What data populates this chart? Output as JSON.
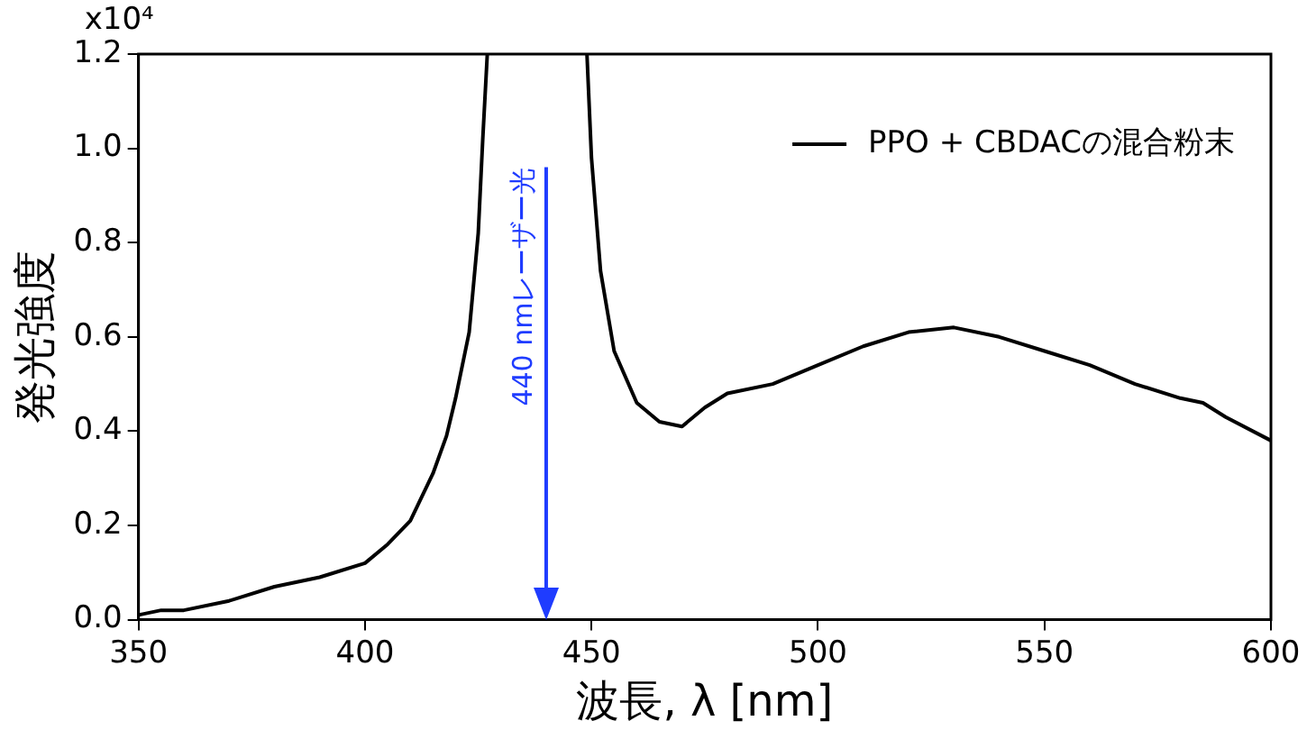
{
  "chart_data": {
    "type": "line",
    "xlabel": "波長, λ [nm]",
    "ylabel": "発光強度",
    "x": [
      350,
      355,
      360,
      370,
      380,
      390,
      400,
      405,
      410,
      415,
      418,
      420,
      423,
      425,
      426,
      427,
      440,
      449,
      450,
      452,
      455,
      460,
      465,
      470,
      475,
      480,
      490,
      500,
      510,
      520,
      530,
      540,
      550,
      560,
      570,
      580,
      585,
      590,
      600
    ],
    "series": [
      {
        "name": "PPO + CBDACの混合粉末",
        "color": "#000000",
        "values": [
          0.01,
          0.02,
          0.02,
          0.04,
          0.07,
          0.09,
          0.12,
          0.16,
          0.21,
          0.31,
          0.39,
          0.47,
          0.61,
          0.82,
          1.02,
          1.2,
          null,
          1.2,
          0.98,
          0.74,
          0.57,
          0.46,
          0.42,
          0.41,
          0.45,
          0.48,
          0.5,
          0.54,
          0.58,
          0.61,
          0.62,
          0.6,
          0.57,
          0.54,
          0.5,
          0.47,
          0.46,
          0.43,
          0.38
        ]
      }
    ],
    "xlim": [
      350,
      600
    ],
    "xticks": [
      350,
      400,
      450,
      500,
      550,
      600
    ],
    "ylim": [
      0,
      1.2
    ],
    "yticks": [
      {
        "value": 0,
        "label": "0.0"
      },
      {
        "value": 0.2,
        "label": "0.2"
      },
      {
        "value": 0.4,
        "label": "0.4"
      },
      {
        "value": 0.6,
        "label": "0.6"
      },
      {
        "value": 0.8,
        "label": "0.8"
      },
      {
        "value": 1,
        "label": "1.0"
      },
      {
        "value": 1.2,
        "label": "1.2"
      }
    ],
    "annotations": [
      "x10⁴"
    ],
    "ref_lines": [
      {
        "axis": "x",
        "value": 440,
        "label": "440 nmレーザー光",
        "color": "#1f3cff"
      }
    ],
    "legend": "top right",
    "grid": false,
    "marker": "none",
    "line_style": "solid"
  }
}
